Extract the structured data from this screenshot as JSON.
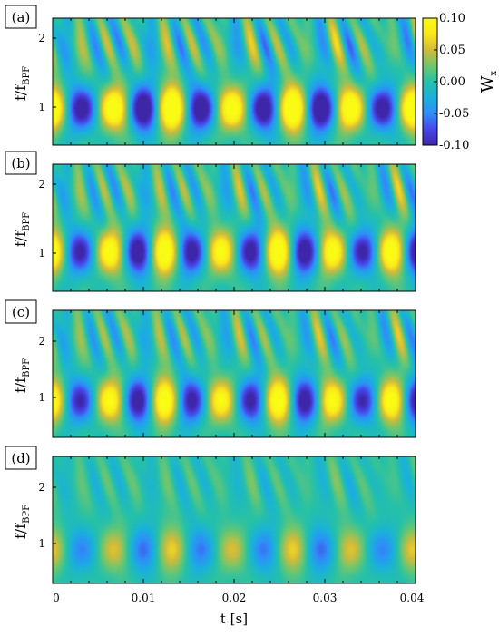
{
  "colors": {
    "colormap": [
      "#3e26a8",
      "#4746eb",
      "#2f8ef8",
      "#1ab0dd",
      "#25c1a8",
      "#71c66d",
      "#d2bb3a",
      "#fbe71a",
      "#f9fb15"
    ],
    "frame": "#000000",
    "background": "#ffffff"
  },
  "chart_data": [
    {
      "type": "heatmap",
      "panel_label": "(a)",
      "ylabel": "f/f",
      "ylabel_subscript": "BPF",
      "xlim": [
        0,
        0.04
      ],
      "ylim": [
        0.35,
        2.6
      ],
      "y_ticks": [
        "1",
        "2"
      ],
      "y_tick_values": [
        1,
        2
      ],
      "ridge_frequency": 1.0,
      "ridge_period": 0.0066,
      "ridge_amplitude": 0.1,
      "colorbar": {
        "label": "W",
        "label_subscript": "x",
        "range": [
          -0.1,
          0.1
        ],
        "ticks": [
          "0.10",
          "0.05",
          "0.00",
          "-0.05",
          "-0.10"
        ],
        "tick_values": [
          0.1,
          0.05,
          0.0,
          -0.05,
          -0.1
        ]
      }
    },
    {
      "type": "heatmap",
      "panel_label": "(b)",
      "ylabel": "f/f",
      "ylabel_subscript": "BPF",
      "xlim": [
        0,
        0.04
      ],
      "ylim": [
        0.35,
        2.6
      ],
      "y_ticks": [
        "1",
        "2"
      ],
      "y_tick_values": [
        1,
        2
      ],
      "ridge_frequency": 1.05,
      "ridge_period": 0.0062,
      "ridge_amplitude": 0.09
    },
    {
      "type": "heatmap",
      "panel_label": "(c)",
      "ylabel": "f/f",
      "ylabel_subscript": "BPF",
      "xlim": [
        0,
        0.04
      ],
      "ylim": [
        0.35,
        2.6
      ],
      "y_ticks": [
        "1",
        "2"
      ],
      "y_tick_values": [
        1,
        2
      ],
      "ridge_frequency": 1.0,
      "ridge_period": 0.0062,
      "ridge_amplitude": 0.085
    },
    {
      "type": "heatmap",
      "panel_label": "(d)",
      "ylabel": "f/f",
      "ylabel_subscript": "BPF",
      "xlabel": "t [s]",
      "xlim": [
        0,
        0.04
      ],
      "ylim": [
        0.35,
        2.6
      ],
      "y_ticks": [
        "1",
        "2"
      ],
      "y_tick_values": [
        1,
        2
      ],
      "x_ticks": [
        "0",
        "0.01",
        "0.02",
        "0.03",
        "0.04"
      ],
      "x_tick_values": [
        0,
        0.01,
        0.02,
        0.03,
        0.04
      ],
      "ridge_frequency": 0.95,
      "ridge_period": 0.0066,
      "ridge_amplitude": 0.045
    }
  ]
}
